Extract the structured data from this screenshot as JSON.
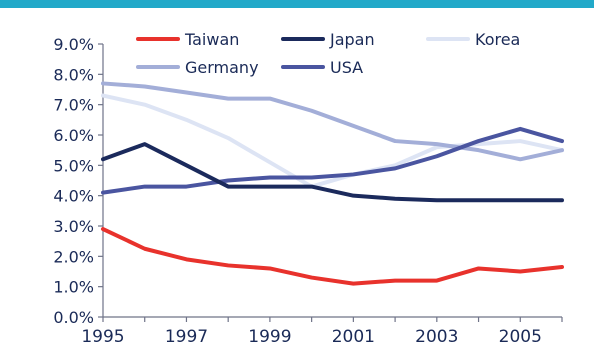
{
  "header_bar_color": "#22a9c9",
  "chart_data": {
    "type": "line",
    "title": "",
    "xlabel": "",
    "ylabel": "",
    "x": [
      1995,
      1996,
      1997,
      1998,
      1999,
      2000,
      2001,
      2002,
      2003,
      2004,
      2005,
      2006
    ],
    "x_tick_labels": [
      "1995",
      "1997",
      "1999",
      "2001",
      "2003",
      "2005"
    ],
    "y_tick_labels": [
      "0.0%",
      "1.0%",
      "2.0%",
      "3.0%",
      "4.0%",
      "5.0%",
      "6.0%",
      "7.0%",
      "8.0%",
      "9.0%"
    ],
    "xlim": [
      1995,
      2006
    ],
    "ylim": [
      0,
      9
    ],
    "grid": false,
    "legend_position": "top",
    "series": [
      {
        "name": "Taiwan",
        "color": "#e8322c",
        "values": [
          2.9,
          2.25,
          1.9,
          1.7,
          1.6,
          1.3,
          1.1,
          1.2,
          1.2,
          1.6,
          1.5,
          1.65
        ]
      },
      {
        "name": "Japan",
        "color": "#1b2a5c",
        "values": [
          5.2,
          5.7,
          5.0,
          4.3,
          4.3,
          4.3,
          4.0,
          3.9,
          3.85,
          3.85,
          3.85,
          3.85
        ]
      },
      {
        "name": "Korea",
        "color": "#dde4f4",
        "values": [
          7.3,
          7.0,
          6.5,
          5.9,
          5.1,
          4.3,
          4.7,
          5.0,
          5.6,
          5.7,
          5.8,
          5.5
        ]
      },
      {
        "name": "Germany",
        "color": "#a3aed8",
        "values": [
          7.7,
          7.6,
          7.4,
          7.2,
          7.2,
          6.8,
          6.3,
          5.8,
          5.7,
          5.5,
          5.2,
          5.5
        ]
      },
      {
        "name": "USA",
        "color": "#4a55a0",
        "values": [
          4.1,
          4.3,
          4.3,
          4.5,
          4.6,
          4.6,
          4.7,
          4.9,
          5.3,
          5.8,
          6.2,
          5.8
        ]
      }
    ]
  }
}
